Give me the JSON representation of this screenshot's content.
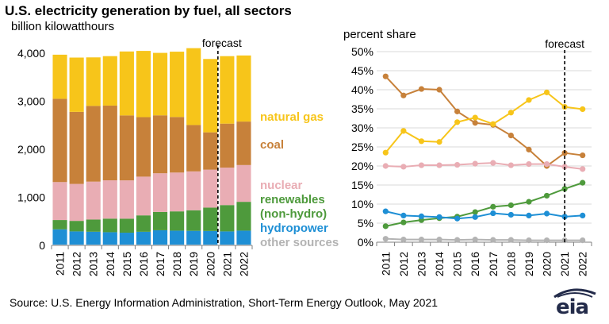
{
  "title": "U.S. electricity generation by fuel, all sectors",
  "subtitle": "billion kilowatthours",
  "right_axis_label": "percent share",
  "forecast_label": "forecast",
  "source": "Source: U.S. Energy Information Administration, Short-Term Energy Outlook, May 2021",
  "logo_text": "eia",
  "colors": {
    "natural_gas": "#F7C51A",
    "coal": "#C7813A",
    "nuclear": "#E9ADB4",
    "renewables": "#4E9A3C",
    "hydropower": "#1E8FD5",
    "other": "#B3B3B3",
    "grid": "#D9D9D9",
    "axis": "#7F7F7F"
  },
  "legend": [
    {
      "key": "natural_gas",
      "label": "natural gas"
    },
    {
      "key": "coal",
      "label": "coal"
    },
    {
      "key": "nuclear",
      "label": "nuclear"
    },
    {
      "key": "renewables",
      "label": "renewables"
    },
    {
      "key": "renewables",
      "label": "(non-hydro)"
    },
    {
      "key": "hydropower",
      "label": "hydropower"
    },
    {
      "key": "other",
      "label": "other sources"
    }
  ],
  "chart_data": [
    {
      "type": "bar",
      "stacked": true,
      "categories": [
        "2011",
        "2012",
        "2013",
        "2014",
        "2015",
        "2016",
        "2017",
        "2018",
        "2019",
        "2020",
        "2021",
        "2022"
      ],
      "ylim": [
        0,
        4000
      ],
      "yticks": [
        0,
        1000,
        2000,
        3000,
        4000
      ],
      "ytick_labels": [
        "0",
        "1,000",
        "2,000",
        "3,000",
        "4,000"
      ],
      "forecast_from": "2021",
      "series": [
        {
          "name": "other sources",
          "key": "other",
          "values": [
            15,
            15,
            15,
            15,
            15,
            15,
            15,
            15,
            15,
            15,
            15,
            15
          ]
        },
        {
          "name": "hydropower",
          "key": "hydropower",
          "values": [
            319,
            276,
            269,
            259,
            249,
            268,
            300,
            292,
            288,
            285,
            276,
            292
          ]
        },
        {
          "name": "renewables (non-hydro)",
          "key": "renewables",
          "values": [
            194,
            219,
            254,
            283,
            292,
            342,
            381,
            401,
            428,
            486,
            548,
            600
          ]
        },
        {
          "name": "nuclear",
          "key": "nuclear",
          "values": [
            790,
            769,
            789,
            797,
            797,
            806,
            805,
            808,
            809,
            790,
            780,
            765
          ]
        },
        {
          "name": "coal",
          "key": "coal",
          "values": [
            1733,
            1500,
            1576,
            1556,
            1352,
            1238,
            1206,
            1156,
            965,
            777,
            915,
            905
          ]
        },
        {
          "name": "natural gas",
          "key": "natural_gas",
          "values": [
            918,
            1130,
            1010,
            1029,
            1331,
            1379,
            1300,
            1360,
            1600,
            1527,
            1405,
            1376
          ]
        }
      ]
    },
    {
      "type": "line",
      "x": [
        "2011",
        "2012",
        "2013",
        "2014",
        "2015",
        "2016",
        "2017",
        "2018",
        "2019",
        "2020",
        "2021",
        "2022"
      ],
      "ylim": [
        0,
        50
      ],
      "yticks": [
        0,
        5,
        10,
        15,
        20,
        25,
        30,
        35,
        40,
        45,
        50
      ],
      "ytick_labels": [
        "0%",
        "5%",
        "10%",
        "15%",
        "20%",
        "25%",
        "30%",
        "35%",
        "40%",
        "45%",
        "50%"
      ],
      "forecast_from": "2021",
      "series": [
        {
          "name": "coal",
          "key": "coal",
          "values": [
            43.5,
            38.5,
            40.2,
            40.0,
            34.3,
            31.3,
            30.8,
            28.0,
            24.3,
            20.0,
            23.4,
            22.8
          ]
        },
        {
          "name": "natural gas",
          "key": "natural_gas",
          "values": [
            23.5,
            29.2,
            26.5,
            26.3,
            31.5,
            32.7,
            31.0,
            34.0,
            37.3,
            39.3,
            35.5,
            34.9
          ]
        },
        {
          "name": "nuclear",
          "key": "nuclear",
          "values": [
            20.0,
            19.8,
            20.2,
            20.2,
            20.3,
            20.6,
            20.8,
            20.2,
            20.5,
            20.5,
            19.8,
            19.2
          ]
        },
        {
          "name": "renewables (non-hydro)",
          "key": "renewables",
          "values": [
            4.2,
            5.2,
            5.8,
            6.3,
            6.7,
            7.9,
            9.3,
            9.7,
            10.6,
            12.2,
            14.0,
            15.6
          ]
        },
        {
          "name": "hydropower",
          "key": "hydropower",
          "values": [
            8.1,
            7.0,
            6.8,
            6.6,
            6.2,
            6.6,
            7.6,
            7.2,
            7.0,
            7.5,
            6.7,
            7.0
          ]
        },
        {
          "name": "other sources",
          "key": "other",
          "values": [
            0.9,
            0.7,
            0.7,
            0.7,
            0.6,
            0.7,
            0.6,
            0.6,
            0.5,
            0.5,
            0.5,
            0.5
          ]
        }
      ]
    }
  ]
}
